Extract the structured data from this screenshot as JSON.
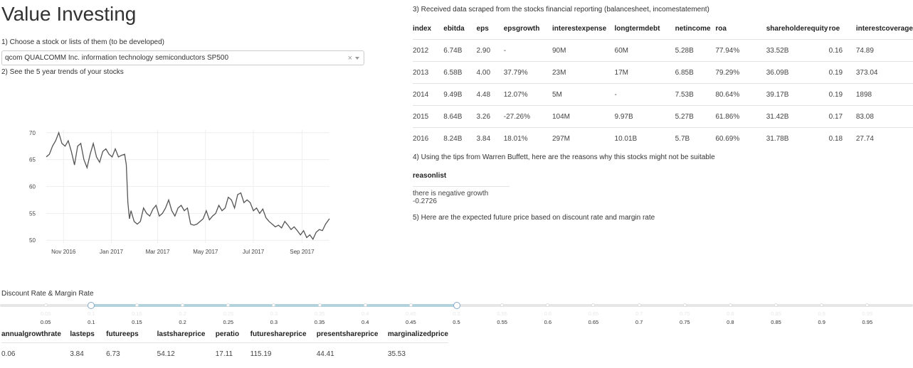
{
  "app": {
    "title": "Value Investing"
  },
  "steps": {
    "s1": "1) Choose a stock or lists of them (to be developed)",
    "s2": "2) See the 5 year trends of your stocks",
    "s3": "3) Received data scraped from the stocks financial reporting (balancesheet, incomestatement)",
    "s4": "4) Using the tips from Warren Buffett, here are the reasons why this stocks might not be suitable",
    "s5": "5) Here are the expected future price based on discount rate and margin rate"
  },
  "stock_select": {
    "value": "qcom QUALCOMM Inc. information technology semiconductors SP500",
    "clear_icon": "close-icon",
    "toggle_icon": "chevron-down-icon"
  },
  "financials": {
    "columns": [
      "index",
      "ebitda",
      "eps",
      "epsgrowth",
      "interestexpense",
      "longtermdebt",
      "netincome",
      "roa",
      "shareholderequity",
      "roe",
      "interestcoverage"
    ],
    "rows": [
      [
        "2012",
        "6.74B",
        "2.90",
        "-",
        "90M",
        "60M",
        "5.28B",
        "77.94%",
        "33.52B",
        "0.16",
        "74.89"
      ],
      [
        "2013",
        "6.58B",
        "4.00",
        "37.79%",
        "23M",
        "17M",
        "6.85B",
        "79.29%",
        "36.09B",
        "0.19",
        "373.04"
      ],
      [
        "2014",
        "9.49B",
        "4.48",
        "12.07%",
        "5M",
        "-",
        "7.53B",
        "80.64%",
        "39.17B",
        "0.19",
        "1898"
      ],
      [
        "2015",
        "8.64B",
        "3.26",
        "-27.26%",
        "104M",
        "9.97B",
        "5.27B",
        "61.86%",
        "31.42B",
        "0.17",
        "83.08"
      ],
      [
        "2016",
        "8.24B",
        "3.84",
        "18.01%",
        "297M",
        "10.01B",
        "5.7B",
        "60.69%",
        "31.78B",
        "0.18",
        "27.74"
      ]
    ]
  },
  "reasons": {
    "header": "reasonlist",
    "items": [
      "there is negative growth -0.2726"
    ]
  },
  "slider": {
    "label": "Discount Rate & Margin Rate",
    "ticks": [
      "0.05",
      "0.1",
      "0.15",
      "0.2",
      "0.25",
      "0.3",
      "0.35",
      "0.4",
      "0.45",
      "0.5",
      "0.55",
      "0.6",
      "0.65",
      "0.7",
      "0.75",
      "0.8",
      "0.85",
      "0.9",
      "0.95"
    ],
    "low": 0.1,
    "high": 0.5,
    "min": 0,
    "max": 1
  },
  "valuation": {
    "columns": [
      "annualgrowthrate",
      "lasteps",
      "futureeps",
      "lastshareprice",
      "peratio",
      "futureshareprice",
      "presentshareprice",
      "marginalizedprice"
    ],
    "rows": [
      [
        "0.06",
        "3.84",
        "6.73",
        "54.12",
        "17.11",
        "115.19",
        "44.41",
        "35.53"
      ]
    ]
  },
  "chart_data": {
    "type": "line",
    "title": "",
    "xlabel": "",
    "ylabel": "",
    "x_ticks": [
      "Nov 2016",
      "Jan 2017",
      "Mar 2017",
      "May 2017",
      "Jul 2017",
      "Sep 2017"
    ],
    "y_ticks": [
      50,
      55,
      60,
      65,
      70
    ],
    "xlim": [
      "2016-10-10",
      "2017-10-06"
    ],
    "ylim": [
      49.5,
      70.5
    ],
    "grid": true,
    "color": "#555555",
    "series": [
      {
        "x": [
          "2016-10-10",
          "2016-10-14",
          "2016-10-18",
          "2016-10-22",
          "2016-10-26",
          "2016-10-30",
          "2016-11-03",
          "2016-11-07",
          "2016-11-11",
          "2016-11-15",
          "2016-11-19",
          "2016-11-23",
          "2016-11-27",
          "2016-12-01",
          "2016-12-05",
          "2016-12-09",
          "2016-12-13",
          "2016-12-17",
          "2016-12-21",
          "2016-12-25",
          "2016-12-29",
          "2017-01-02",
          "2017-01-06",
          "2017-01-10",
          "2017-01-14",
          "2017-01-18",
          "2017-01-20",
          "2017-01-22",
          "2017-01-24",
          "2017-01-26",
          "2017-01-30",
          "2017-02-03",
          "2017-02-07",
          "2017-02-11",
          "2017-02-15",
          "2017-02-19",
          "2017-02-23",
          "2017-02-27",
          "2017-03-03",
          "2017-03-07",
          "2017-03-11",
          "2017-03-15",
          "2017-03-19",
          "2017-03-23",
          "2017-03-27",
          "2017-03-31",
          "2017-04-04",
          "2017-04-08",
          "2017-04-12",
          "2017-04-16",
          "2017-04-20",
          "2017-04-24",
          "2017-04-28",
          "2017-05-02",
          "2017-05-06",
          "2017-05-10",
          "2017-05-14",
          "2017-05-18",
          "2017-05-22",
          "2017-05-26",
          "2017-05-30",
          "2017-06-03",
          "2017-06-07",
          "2017-06-11",
          "2017-06-15",
          "2017-06-19",
          "2017-06-23",
          "2017-06-27",
          "2017-07-01",
          "2017-07-05",
          "2017-07-09",
          "2017-07-13",
          "2017-07-17",
          "2017-07-21",
          "2017-07-25",
          "2017-07-29",
          "2017-08-02",
          "2017-08-06",
          "2017-08-10",
          "2017-08-14",
          "2017-08-18",
          "2017-08-22",
          "2017-08-26",
          "2017-08-30",
          "2017-09-03",
          "2017-09-07",
          "2017-09-11",
          "2017-09-15",
          "2017-09-19",
          "2017-09-23",
          "2017-09-27",
          "2017-10-01",
          "2017-10-06"
        ],
        "y": [
          65.5,
          66.0,
          67.5,
          68.5,
          70.0,
          68.0,
          67.5,
          68.5,
          66.5,
          64.0,
          67.5,
          68.0,
          65.0,
          63.5,
          66.0,
          68.0,
          65.5,
          64.5,
          66.5,
          67.0,
          66.0,
          65.5,
          67.0,
          65.5,
          65.8,
          66.0,
          64.0,
          57.0,
          54.0,
          55.5,
          53.5,
          53.0,
          53.5,
          56.0,
          55.0,
          54.5,
          55.8,
          56.5,
          54.5,
          55.0,
          56.0,
          57.5,
          55.5,
          54.5,
          56.0,
          56.5,
          55.5,
          56.0,
          53.0,
          52.8,
          53.0,
          53.5,
          54.0,
          55.5,
          53.8,
          54.5,
          55.0,
          56.5,
          55.5,
          56.0,
          58.0,
          57.5,
          56.0,
          58.5,
          58.8,
          57.0,
          57.5,
          57.0,
          55.5,
          56.0,
          55.0,
          55.8,
          54.2,
          53.5,
          53.0,
          52.5,
          52.8,
          52.3,
          53.5,
          52.8,
          52.0,
          52.5,
          51.8,
          51.0,
          51.8,
          50.5,
          51.0,
          50.2,
          51.5,
          52.0,
          51.8,
          53.0,
          54.0
        ]
      }
    ]
  }
}
